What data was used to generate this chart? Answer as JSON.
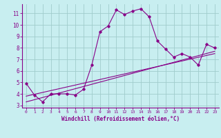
{
  "xlabel": "Windchill (Refroidissement éolien,°C)",
  "xlim": [
    -0.5,
    23.5
  ],
  "ylim": [
    2.8,
    11.8
  ],
  "yticks": [
    3,
    4,
    5,
    6,
    7,
    8,
    9,
    10,
    11
  ],
  "xticks": [
    0,
    1,
    2,
    3,
    4,
    5,
    6,
    7,
    8,
    9,
    10,
    11,
    12,
    13,
    14,
    15,
    16,
    17,
    18,
    19,
    20,
    21,
    22,
    23
  ],
  "bg_color": "#c8eef0",
  "line_color": "#880088",
  "grid_color": "#a0cccc",
  "line1_x": [
    0,
    1,
    2,
    3,
    4,
    5,
    6,
    7,
    8,
    9,
    10,
    11,
    12,
    13,
    14,
    15,
    16,
    17,
    18,
    19,
    20,
    21,
    22,
    23
  ],
  "line1_y": [
    4.9,
    3.9,
    3.3,
    4.0,
    4.0,
    4.0,
    3.9,
    4.4,
    6.5,
    9.4,
    9.9,
    11.3,
    10.9,
    11.2,
    11.4,
    10.7,
    8.6,
    7.9,
    7.2,
    7.5,
    7.2,
    6.5,
    8.3,
    8.0
  ],
  "line2_x": [
    0,
    23
  ],
  "line2_y": [
    3.3,
    7.7
  ],
  "line3_x": [
    0,
    23
  ],
  "line3_y": [
    3.8,
    7.5
  ]
}
